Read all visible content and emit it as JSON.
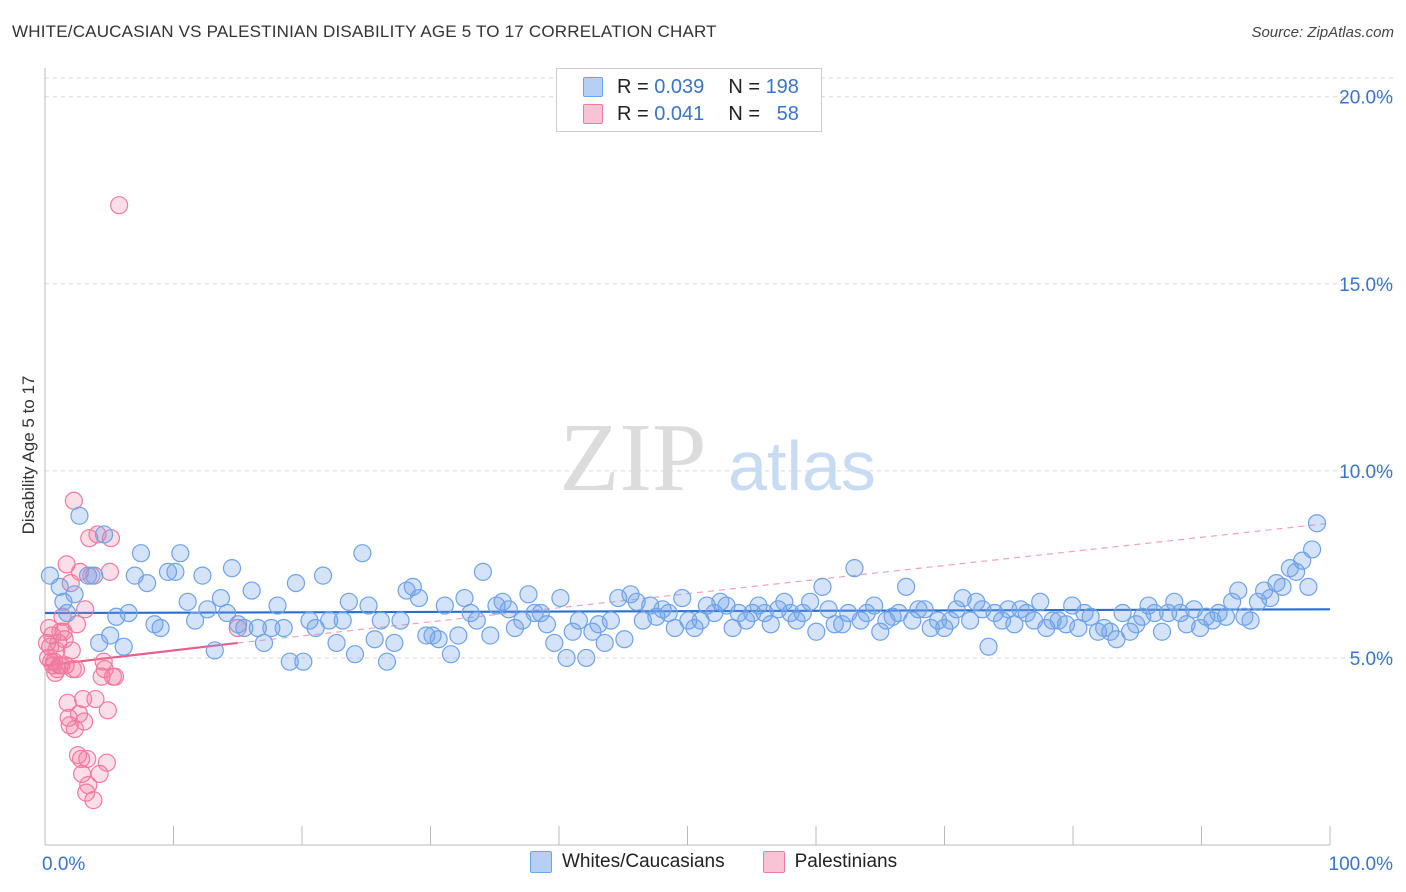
{
  "title": "WHITE/CAUCASIAN VS PALESTINIAN DISABILITY AGE 5 TO 17 CORRELATION CHART",
  "source": "Source: ZipAtlas.com",
  "watermark": {
    "zip": "ZIP",
    "atlas": "atlas"
  },
  "colors": {
    "blue": "#6fa3e8",
    "blue_line": "#2a6fd0",
    "pink": "#f07aa0",
    "pink_line": "#e8608a",
    "grid": "#d8d8d8",
    "tick_text": "#3a74c8"
  },
  "legend_top": [
    {
      "r_label": "R =",
      "r_value": "0.039",
      "n_label": "N =",
      "n_value": "198"
    },
    {
      "r_label": "R =",
      "r_value": "0.041",
      "n_label": "N =",
      "n_value": "58"
    }
  ],
  "legend_bottom": [
    {
      "label": "Whites/Caucasians"
    },
    {
      "label": "Palestinians"
    }
  ],
  "chart_data": {
    "type": "scatter",
    "title": "WHITE/CAUCASIAN VS PALESTINIAN DISABILITY AGE 5 TO 17 CORRELATION CHART",
    "xlabel": "",
    "ylabel": "Disability Age 5 to 17",
    "xlim": [
      0,
      100
    ],
    "ylim": [
      0,
      20.5
    ],
    "x_tick_labels": [
      "0.0%",
      "100.0%"
    ],
    "y_ticks": [
      5,
      10,
      15,
      20
    ],
    "y_tick_labels": [
      "5.0%",
      "10.0%",
      "15.0%",
      "20.0%"
    ],
    "series": [
      {
        "name": "Whites/Caucasians",
        "r": 0.039,
        "n": 198,
        "trend": {
          "x": [
            0,
            100
          ],
          "y": [
            6.2,
            6.3
          ]
        },
        "points": [
          [
            0.4,
            7.2
          ],
          [
            1.2,
            6.9
          ],
          [
            1.5,
            6.5
          ],
          [
            1.8,
            6.2
          ],
          [
            2.4,
            6.7
          ],
          [
            2.8,
            8.8
          ],
          [
            3.5,
            7.2
          ],
          [
            4.0,
            7.2
          ],
          [
            4.4,
            5.4
          ],
          [
            4.8,
            8.3
          ],
          [
            5.3,
            5.6
          ],
          [
            5.8,
            6.1
          ],
          [
            6.4,
            5.3
          ],
          [
            6.8,
            6.2
          ],
          [
            7.3,
            7.2
          ],
          [
            7.8,
            7.8
          ],
          [
            8.3,
            7.0
          ],
          [
            8.9,
            5.9
          ],
          [
            9.4,
            5.8
          ],
          [
            10.0,
            7.3
          ],
          [
            10.6,
            7.3
          ],
          [
            11.0,
            7.8
          ],
          [
            11.6,
            6.5
          ],
          [
            12.2,
            6.0
          ],
          [
            12.8,
            7.2
          ],
          [
            13.2,
            6.3
          ],
          [
            13.8,
            5.2
          ],
          [
            14.3,
            6.6
          ],
          [
            14.8,
            6.2
          ],
          [
            15.2,
            7.4
          ],
          [
            15.7,
            5.9
          ],
          [
            16.2,
            5.8
          ],
          [
            16.8,
            6.8
          ],
          [
            17.3,
            5.8
          ],
          [
            17.8,
            5.4
          ],
          [
            18.4,
            5.8
          ],
          [
            18.9,
            6.4
          ],
          [
            19.4,
            5.8
          ],
          [
            19.9,
            4.9
          ],
          [
            20.4,
            7.0
          ],
          [
            21.0,
            4.9
          ],
          [
            21.5,
            6.0
          ],
          [
            22.0,
            5.8
          ],
          [
            22.6,
            7.2
          ],
          [
            23.1,
            6.0
          ],
          [
            23.7,
            5.4
          ],
          [
            24.2,
            6.0
          ],
          [
            24.7,
            6.5
          ],
          [
            25.2,
            5.1
          ],
          [
            25.8,
            7.8
          ],
          [
            26.3,
            6.4
          ],
          [
            26.8,
            5.5
          ],
          [
            27.3,
            6.0
          ],
          [
            27.8,
            4.9
          ],
          [
            28.4,
            5.4
          ],
          [
            28.9,
            6.0
          ],
          [
            29.4,
            6.8
          ],
          [
            29.9,
            6.9
          ],
          [
            30.4,
            6.6
          ],
          [
            31.0,
            5.6
          ],
          [
            31.5,
            5.6
          ],
          [
            32.0,
            5.5
          ],
          [
            32.5,
            6.4
          ],
          [
            33.0,
            5.1
          ],
          [
            33.6,
            5.6
          ],
          [
            34.1,
            6.6
          ],
          [
            34.6,
            6.2
          ],
          [
            35.1,
            6.0
          ],
          [
            35.6,
            7.3
          ],
          [
            36.2,
            5.6
          ],
          [
            36.7,
            6.4
          ],
          [
            37.2,
            6.5
          ],
          [
            37.7,
            6.3
          ],
          [
            38.2,
            5.8
          ],
          [
            38.8,
            6.0
          ],
          [
            39.3,
            6.7
          ],
          [
            39.8,
            6.2
          ],
          [
            40.3,
            6.2
          ],
          [
            40.8,
            5.9
          ],
          [
            41.4,
            5.4
          ],
          [
            41.9,
            6.6
          ],
          [
            42.4,
            5.0
          ],
          [
            42.9,
            5.7
          ],
          [
            43.4,
            6.0
          ],
          [
            44.0,
            5.0
          ],
          [
            44.5,
            5.7
          ],
          [
            45.0,
            5.9
          ],
          [
            45.5,
            5.4
          ],
          [
            46.0,
            6.0
          ],
          [
            46.6,
            6.6
          ],
          [
            47.1,
            5.5
          ],
          [
            47.6,
            6.7
          ],
          [
            48.1,
            6.5
          ],
          [
            48.6,
            6.0
          ],
          [
            49.2,
            6.4
          ],
          [
            49.7,
            6.1
          ],
          [
            50.2,
            6.3
          ],
          [
            50.7,
            6.2
          ],
          [
            51.2,
            5.8
          ],
          [
            51.8,
            6.6
          ],
          [
            52.3,
            6.0
          ],
          [
            52.8,
            5.8
          ],
          [
            53.3,
            6.0
          ],
          [
            53.8,
            6.4
          ],
          [
            54.4,
            6.2
          ],
          [
            54.9,
            6.5
          ],
          [
            55.4,
            6.4
          ],
          [
            55.9,
            5.8
          ],
          [
            56.4,
            6.2
          ],
          [
            57.0,
            6.0
          ],
          [
            57.5,
            6.2
          ],
          [
            58.0,
            6.4
          ],
          [
            58.5,
            6.2
          ],
          [
            59.0,
            5.9
          ],
          [
            59.6,
            6.3
          ],
          [
            60.1,
            6.5
          ],
          [
            60.6,
            6.2
          ],
          [
            61.1,
            6.0
          ],
          [
            61.6,
            6.2
          ],
          [
            62.2,
            6.5
          ],
          [
            62.7,
            5.7
          ],
          [
            63.2,
            6.9
          ],
          [
            63.7,
            6.3
          ],
          [
            64.2,
            5.9
          ],
          [
            64.8,
            5.9
          ],
          [
            65.3,
            6.2
          ],
          [
            65.8,
            7.4
          ],
          [
            66.3,
            6.0
          ],
          [
            66.8,
            6.2
          ],
          [
            67.4,
            6.4
          ],
          [
            67.9,
            5.7
          ],
          [
            68.4,
            6.0
          ],
          [
            68.9,
            6.1
          ],
          [
            69.4,
            6.2
          ],
          [
            70.0,
            6.9
          ],
          [
            70.5,
            6.0
          ],
          [
            71.0,
            6.3
          ],
          [
            71.5,
            6.3
          ],
          [
            72.0,
            5.8
          ],
          [
            72.6,
            6.0
          ],
          [
            73.1,
            5.8
          ],
          [
            73.6,
            6.0
          ],
          [
            74.1,
            6.3
          ],
          [
            74.6,
            6.6
          ],
          [
            75.2,
            6.0
          ],
          [
            75.7,
            6.5
          ],
          [
            76.2,
            6.3
          ],
          [
            76.7,
            5.3
          ],
          [
            77.2,
            6.2
          ],
          [
            77.8,
            6.0
          ],
          [
            78.3,
            6.3
          ],
          [
            78.8,
            5.9
          ],
          [
            79.3,
            6.3
          ],
          [
            79.8,
            6.2
          ],
          [
            80.4,
            6.0
          ],
          [
            80.9,
            6.5
          ],
          [
            81.4,
            5.8
          ],
          [
            81.9,
            6.0
          ],
          [
            82.4,
            6.0
          ],
          [
            83.0,
            5.9
          ],
          [
            83.5,
            6.4
          ],
          [
            84.0,
            5.8
          ],
          [
            84.5,
            6.2
          ],
          [
            85.0,
            6.1
          ],
          [
            85.6,
            5.7
          ],
          [
            86.1,
            5.8
          ],
          [
            86.6,
            5.7
          ],
          [
            87.1,
            5.5
          ],
          [
            87.6,
            6.2
          ],
          [
            88.2,
            5.7
          ],
          [
            88.7,
            5.9
          ],
          [
            89.2,
            6.1
          ],
          [
            89.7,
            6.4
          ],
          [
            90.2,
            6.2
          ],
          [
            90.8,
            5.7
          ],
          [
            91.3,
            6.2
          ],
          [
            91.8,
            6.5
          ],
          [
            92.3,
            6.2
          ],
          [
            92.8,
            5.9
          ],
          [
            93.4,
            6.3
          ],
          [
            93.9,
            5.8
          ],
          [
            94.4,
            6.1
          ],
          [
            94.9,
            6.0
          ],
          [
            95.4,
            6.2
          ],
          [
            96.0,
            6.1
          ],
          [
            96.5,
            6.5
          ],
          [
            97.0,
            6.8
          ],
          [
            97.5,
            6.1
          ],
          [
            98.0,
            6.0
          ],
          [
            98.6,
            6.5
          ],
          [
            99.1,
            6.8
          ],
          [
            99.6,
            6.6
          ],
          [
            100.1,
            7.0
          ],
          [
            100.6,
            6.9
          ],
          [
            101.2,
            7.4
          ],
          [
            101.7,
            7.3
          ],
          [
            102.2,
            7.6
          ],
          [
            102.7,
            6.9
          ],
          [
            103.0,
            7.9
          ],
          [
            103.4,
            8.6
          ]
        ]
      },
      {
        "name": "Palestinians",
        "r": 0.041,
        "n": 58,
        "trend": {
          "x": [
            0,
            15
          ],
          "y": [
            4.8,
            5.4
          ]
        },
        "trend_extension": {
          "x": [
            15,
            100
          ],
          "y": [
            5.4,
            8.6
          ]
        },
        "points": [
          [
            0.2,
            5.4
          ],
          [
            0.3,
            5.0
          ],
          [
            0.4,
            5.8
          ],
          [
            0.5,
            5.3
          ],
          [
            0.6,
            4.9
          ],
          [
            0.7,
            5.6
          ],
          [
            0.8,
            4.8
          ],
          [
            0.9,
            4.9
          ],
          [
            1.0,
            4.6
          ],
          [
            1.1,
            5.2
          ],
          [
            1.2,
            4.7
          ],
          [
            1.3,
            5.4
          ],
          [
            1.4,
            4.8
          ],
          [
            1.5,
            5.7
          ],
          [
            1.6,
            4.8
          ],
          [
            1.7,
            6.1
          ],
          [
            1.8,
            5.7
          ],
          [
            1.9,
            5.5
          ],
          [
            2.0,
            4.8
          ],
          [
            2.1,
            7.5
          ],
          [
            2.2,
            3.8
          ],
          [
            2.3,
            3.4
          ],
          [
            2.4,
            3.2
          ],
          [
            2.5,
            7.0
          ],
          [
            2.6,
            5.2
          ],
          [
            2.7,
            4.7
          ],
          [
            2.8,
            9.2
          ],
          [
            2.9,
            3.1
          ],
          [
            3.0,
            4.7
          ],
          [
            3.1,
            5.9
          ],
          [
            3.2,
            2.4
          ],
          [
            3.3,
            3.5
          ],
          [
            3.4,
            7.3
          ],
          [
            3.5,
            2.3
          ],
          [
            3.6,
            1.9
          ],
          [
            3.7,
            3.9
          ],
          [
            3.8,
            3.3
          ],
          [
            3.9,
            6.3
          ],
          [
            4.0,
            1.4
          ],
          [
            4.1,
            2.3
          ],
          [
            4.2,
            1.6
          ],
          [
            4.3,
            8.2
          ],
          [
            4.5,
            7.2
          ],
          [
            4.7,
            1.2
          ],
          [
            4.9,
            3.9
          ],
          [
            5.1,
            8.3
          ],
          [
            5.3,
            1.9
          ],
          [
            5.5,
            4.5
          ],
          [
            5.7,
            4.9
          ],
          [
            5.8,
            4.7
          ],
          [
            6.0,
            2.2
          ],
          [
            6.1,
            3.6
          ],
          [
            6.3,
            7.3
          ],
          [
            6.4,
            8.2
          ],
          [
            6.6,
            4.5
          ],
          [
            6.8,
            4.5
          ],
          [
            7.2,
            17.1
          ],
          [
            15.0,
            5.8
          ]
        ]
      }
    ]
  }
}
